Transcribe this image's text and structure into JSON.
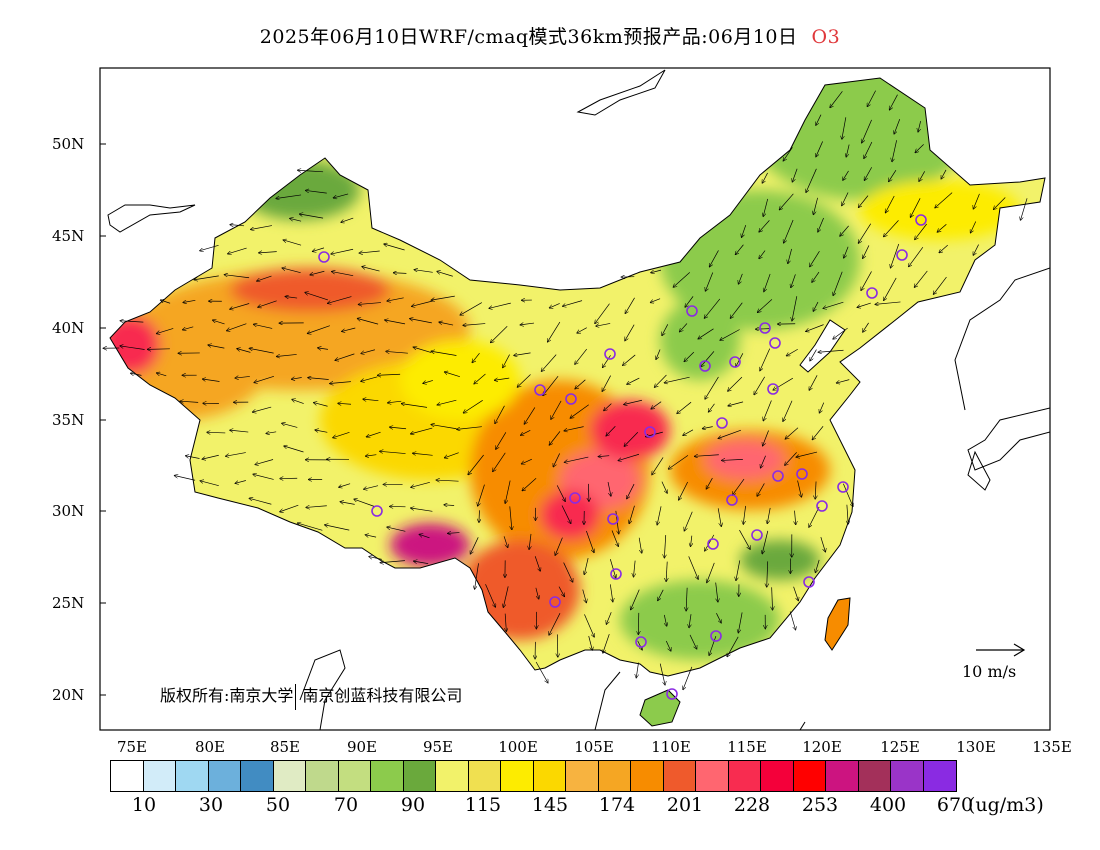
{
  "header": {
    "title": "2025年06月10日WRF/cmaq模式36km预报产品:06月10日",
    "pollutant": "O3"
  },
  "map": {
    "lat_labels": [
      "50N",
      "45N",
      "40N",
      "35N",
      "30N",
      "25N",
      "20N"
    ],
    "lon_labels": [
      "75E",
      "80E",
      "85E",
      "90E",
      "95E",
      "100E",
      "105E",
      "110E",
      "115E",
      "120E",
      "125E",
      "130E",
      "135E"
    ],
    "copyright_part1": "版权所有:南京大学",
    "copyright_part2": "南京创蓝科技有限公司",
    "wind_reference": "10 m/s"
  },
  "colorbar": {
    "colors": [
      "#ffffff",
      "#d2ecf9",
      "#9fd8f2",
      "#6cb0dc",
      "#418cc2",
      "#e0ebc4",
      "#bfd98c",
      "#c3de80",
      "#8ccb4c",
      "#6aa93c",
      "#f2f26a",
      "#f0e050",
      "#fdec00",
      "#fbd800",
      "#f7b340",
      "#f5a623",
      "#f78c00",
      "#ef5a2c",
      "#ff6670",
      "#f82c50",
      "#f4003a",
      "#ff0000",
      "#cc1480",
      "#a3305a",
      "#9a34c8",
      "#8a2be2"
    ],
    "labels": [
      "10",
      "30",
      "50",
      "70",
      "90",
      "115",
      "145",
      "174",
      "201",
      "228",
      "253",
      "400",
      "670"
    ],
    "unit": "(ug/m3)"
  }
}
